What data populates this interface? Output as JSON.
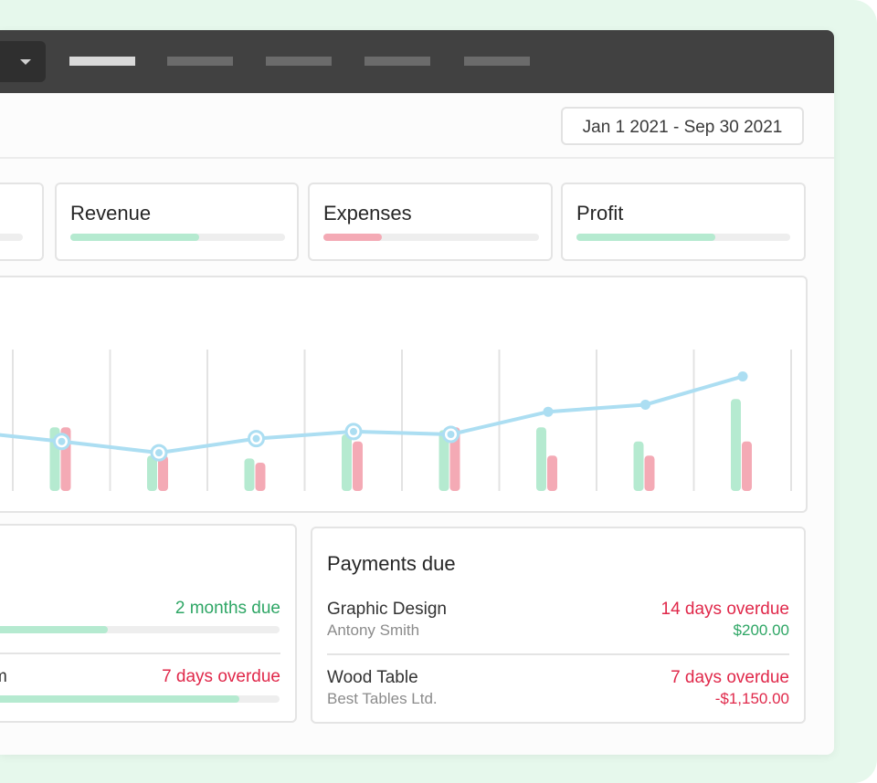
{
  "date_range": "Jan 1 2021 - Sep 30 2021",
  "colors": {
    "green": "#b5ead0",
    "red": "#f4aab5",
    "line": "#acdef2",
    "status_red": "#e0284a",
    "status_green": "#2ea665"
  },
  "kpis": [
    {
      "title": "Revenue",
      "fill": 0.6,
      "color": "green"
    },
    {
      "title": "Expenses",
      "fill": 0.27,
      "color": "red"
    },
    {
      "title": "Profit",
      "fill": 0.65,
      "color": "green"
    }
  ],
  "chart_data": {
    "type": "bar",
    "title": "",
    "xlabel": "",
    "ylabel": "",
    "ylim": [
      0,
      100
    ],
    "grid": true,
    "categories": [
      "",
      "",
      "",
      "",
      "",
      "",
      "",
      ""
    ],
    "series": [
      {
        "values": [
          45,
          25,
          23,
          40,
          43,
          45,
          35,
          65
        ],
        "color": "green"
      },
      {
        "values": [
          45,
          25,
          20,
          35,
          45,
          25,
          25,
          35
        ],
        "color": "red"
      },
      {
        "values": [
          35,
          27,
          37,
          42,
          40,
          56,
          61,
          81
        ],
        "color": "line",
        "type": "line"
      }
    ]
  },
  "left_panel": {
    "rows": [
      {
        "label": "",
        "status": "2 months due",
        "status_color": "status_green",
        "progress": 0.4
      },
      {
        "label": "m",
        "status": "7 days overdue",
        "status_color": "status_red",
        "progress": 0.86
      }
    ]
  },
  "payments": {
    "title": "Payments due",
    "items": [
      {
        "name": "Graphic Design",
        "client": "Antony Smith",
        "status": "14 days overdue",
        "amount": "$200.00",
        "amount_color": "status_green"
      },
      {
        "name": "Wood Table",
        "client": "Best Tables Ltd.",
        "status": "7 days overdue",
        "amount": "-$1,150.00",
        "amount_color": "status_red"
      }
    ]
  }
}
